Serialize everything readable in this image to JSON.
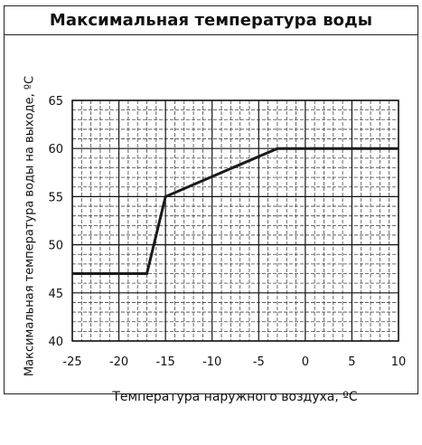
{
  "chart_data": {
    "type": "line",
    "title": "Максимальная температура воды",
    "xlabel": "Температура наружного воздуха, ºС",
    "ylabel": "Максимальная температура воды на выходе, ºС",
    "xlim": [
      -25,
      10
    ],
    "ylim": [
      40,
      65
    ],
    "xticks": [
      -25,
      -20,
      -15,
      -10,
      -5,
      0,
      5,
      10
    ],
    "yticks": [
      40,
      45,
      50,
      55,
      60,
      65
    ],
    "xtick_labels": [
      "-25",
      "-20",
      "-15",
      "-10",
      "-5",
      "0",
      "5",
      "10"
    ],
    "ytick_labels": [
      "40",
      "45",
      "50",
      "55",
      "60",
      "65"
    ],
    "grid": true,
    "series": [
      {
        "x": [
          -25,
          -17,
          -15,
          -3,
          10
        ],
        "y": [
          47,
          47,
          55,
          60,
          60
        ]
      }
    ]
  }
}
